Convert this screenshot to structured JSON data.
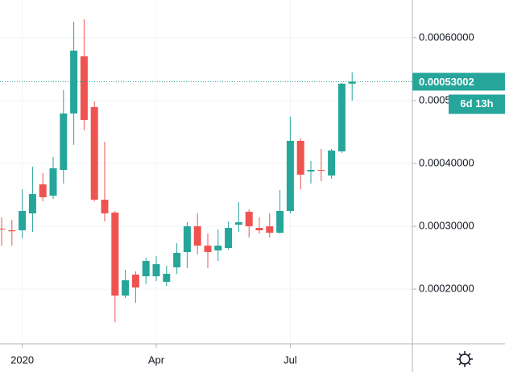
{
  "chart_data": {
    "type": "candlestick",
    "categories": [
      null,
      null,
      "2020",
      null,
      null,
      null,
      null,
      null,
      null,
      null,
      null,
      null,
      null,
      null,
      null,
      "Apr",
      null,
      null,
      null,
      null,
      null,
      null,
      null,
      null,
      null,
      null,
      null,
      null,
      "Jul",
      null,
      null,
      null,
      null,
      null,
      null
    ],
    "open": [
      0.0002962,
      0.0002936,
      0.0002936,
      0.0003205,
      0.0003667,
      0.0003487,
      0.0003897,
      0.0004795,
      0.0005705,
      0.0004897,
      0.0003423,
      0.0003218,
      0.0001897,
      0.0002231,
      0.0002205,
      0.0002205,
      0.0002115,
      0.0002346,
      0.000259,
      0.0003,
      0.0002692,
      0.0002615,
      0.0002654,
      0.0003026,
      0.0003231,
      0.0002974,
      0.0003,
      0.0002897,
      0.0003244,
      0.0004359,
      0.0003872,
      0.0003897,
      0.0003808,
      0.0004192,
      0.0005269
    ],
    "high": [
      0.0003141,
      0.0003103,
      0.000359,
      0.0003949,
      0.0003846,
      0.0004103,
      0.0005167,
      0.0006256,
      0.0006295,
      0.0004987,
      0.0004346,
      0.0003244,
      0.0002308,
      0.0002282,
      0.00025,
      0.0002526,
      0.0002372,
      0.0002731,
      0.0003064,
      0.0003205,
      0.0002885,
      0.0002949,
      0.0003077,
      0.0003385,
      0.0003269,
      0.0003141,
      0.0003205,
      0.0003577,
      0.0004744,
      0.0004397,
      0.0004038,
      0.0004231,
      0.0004231,
      0.0005282,
      0.0005449
    ],
    "low": [
      0.0002692,
      0.0002692,
      0.0002808,
      0.000291,
      0.0003397,
      0.0003436,
      0.0003679,
      0.0004295,
      0.0004526,
      0.0003397,
      0.0003077,
      0.0001474,
      0.0001859,
      0.0001782,
      0.0002077,
      0.0002128,
      0.0002051,
      0.0002244,
      0.0002333,
      0.0002551,
      0.0002333,
      0.0002449,
      0.0002628,
      0.000291,
      0.0002821,
      0.0002885,
      0.0002821,
      0.0002885,
      0.0003205,
      0.000359,
      0.0003679,
      0.0003718,
      0.0003756,
      0.0004167,
      0.0005
    ],
    "close": [
      0.0002949,
      0.000292,
      0.0003244,
      0.0003513,
      0.0003462,
      0.0003923,
      0.0004795,
      0.0005795,
      0.0004692,
      0.0003423,
      0.0003205,
      0.0001897,
      0.0002141,
      0.0002026,
      0.0002449,
      0.0002397,
      0.0002244,
      0.0002577,
      0.0003,
      0.0002692,
      0.000259,
      0.0002692,
      0.0002974,
      0.0003064,
      0.0003,
      0.0002936,
      0.0002897,
      0.0003244,
      0.0004359,
      0.0003821,
      0.0003897,
      0.0003885,
      0.0004205,
      0.0005269,
      0.00053002
    ],
    "up_color": "#26a69a",
    "down_color": "#ef5350",
    "ylim": [
      0.000113,
      0.00066
    ],
    "yticks": [
      {
        "value": 0.0002,
        "label": "0.00020000"
      },
      {
        "value": 0.0003,
        "label": "0.00030000"
      },
      {
        "value": 0.0004,
        "label": "0.00040000"
      },
      {
        "value": 0.0005,
        "label": "0.00050000"
      },
      {
        "value": 0.0006,
        "label": "0.00060000"
      }
    ],
    "grid": true,
    "last_price": 0.00053002,
    "countdown": "6d 13h"
  }
}
